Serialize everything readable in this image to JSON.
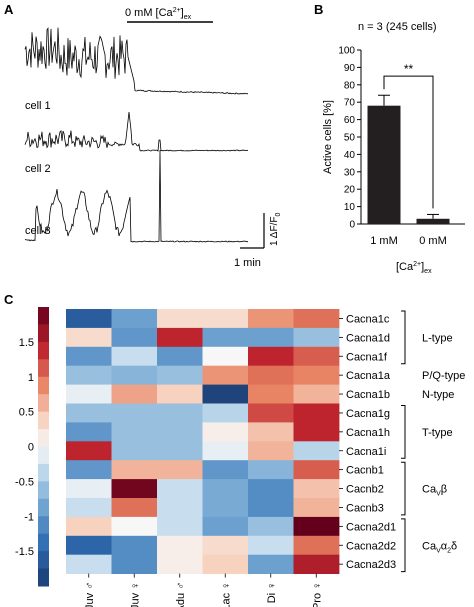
{
  "panel_a": {
    "letter": "A",
    "stim_label": "0 mM [Ca",
    "stim_sup": "2+",
    "stim_close": "]",
    "stim_sub": "ex",
    "cells": [
      "cell 1",
      "cell 2",
      "cell 3"
    ],
    "scale_y": "1 ΔF/F",
    "scale_y_sub": "0",
    "scale_x": "1 min"
  },
  "panel_b": {
    "letter": "B",
    "header": "n = 3 (245 cells)",
    "significance": "**",
    "xaxis_label": "[Ca",
    "xaxis_sup": "2+",
    "xaxis_close": "]",
    "xaxis_sub": "ex"
  },
  "panel_c": {
    "letter": "C",
    "colorbar_ticks": [
      "1.5",
      "1",
      "0.5",
      "0",
      "-0.5",
      "-1",
      "-1.5"
    ],
    "colorbar_values": [
      1.5,
      1,
      0.5,
      0,
      -0.5,
      -1,
      -1.5
    ],
    "genes": [
      "Cacna1c",
      "Cacna1d",
      "Cacna1f",
      "Cacna1a",
      "Cacna1b",
      "Cacna1g",
      "Cacna1h",
      "Cacna1i",
      "Cacnb1",
      "Cacnb2",
      "Cacnb3",
      "Cacna2d1",
      "Cacna2d2",
      "Cacna2d3"
    ],
    "groups": [
      {
        "label": "L-type",
        "rows": [
          0,
          2
        ]
      },
      {
        "label": "P/Q-type",
        "rows": [
          3,
          3
        ]
      },
      {
        "label": "N-type",
        "rows": [
          4,
          4
        ]
      },
      {
        "label": "T-type",
        "rows": [
          5,
          7
        ]
      },
      {
        "label": "Ca",
        "sub": "V",
        "tail": "β",
        "rows": [
          8,
          10
        ]
      },
      {
        "label": "Ca",
        "sub": "V",
        "tail": "α",
        "sub2": "2",
        "tail2": "δ",
        "rows": [
          11,
          13
        ]
      }
    ],
    "columns": [
      "Juv ♂",
      "Juv ♀",
      "Adu ♂",
      "Lac ♀",
      "Di ♀",
      "Pro ♀"
    ]
  },
  "chart_data": [
    {
      "type": "bar",
      "panel": "B",
      "categories": [
        "1 mM",
        "0 mM"
      ],
      "values": [
        68,
        3
      ],
      "errors": [
        6,
        2.5
      ],
      "ylabel": "Active cells [%]",
      "ylim": [
        0,
        100
      ],
      "yticks": [
        0,
        10,
        20,
        30,
        40,
        50,
        60,
        70,
        80,
        90,
        100
      ],
      "bar_color": "#231f20"
    },
    {
      "type": "heatmap",
      "panel": "C",
      "rows": [
        "Cacna1c",
        "Cacna1d",
        "Cacna1f",
        "Cacna1a",
        "Cacna1b",
        "Cacna1g",
        "Cacna1h",
        "Cacna1i",
        "Cacnb1",
        "Cacnb2",
        "Cacnb3",
        "Cacna2d1",
        "Cacna2d2",
        "Cacna2d3"
      ],
      "columns": [
        "Juv ♂",
        "Juv ♀",
        "Adu ♂",
        "Lac ♀",
        "Di ♀",
        "Pro ♀"
      ],
      "values": [
        [
          -1.6,
          -0.9,
          0.3,
          0.3,
          0.8,
          1.0
        ],
        [
          0.3,
          -1.0,
          1.4,
          -0.9,
          -0.9,
          -0.6
        ],
        [
          -1.0,
          -0.3,
          -1.0,
          0.0,
          1.4,
          1.1
        ],
        [
          -0.6,
          -0.7,
          -0.6,
          0.8,
          1.0,
          0.9
        ],
        [
          -0.1,
          0.7,
          0.4,
          -1.9,
          0.9,
          0.6
        ],
        [
          -0.6,
          -0.6,
          -0.6,
          -0.4,
          1.2,
          1.4
        ],
        [
          -1.0,
          -0.6,
          -0.6,
          0.1,
          0.5,
          1.4
        ],
        [
          1.4,
          -0.6,
          -0.6,
          -0.1,
          0.6,
          -0.4
        ],
        [
          -1.0,
          0.6,
          0.6,
          -1.0,
          -0.7,
          1.1
        ],
        [
          -0.1,
          1.9,
          -0.3,
          -0.8,
          -1.1,
          0.5
        ],
        [
          -0.3,
          1.0,
          -0.3,
          -0.8,
          -1.1,
          0.6
        ],
        [
          0.4,
          0.0,
          -0.3,
          -0.9,
          -0.6,
          2.0
        ],
        [
          -1.5,
          -1.1,
          0.1,
          0.3,
          -0.3,
          1.0
        ],
        [
          -0.3,
          -1.1,
          0.1,
          0.4,
          -0.9,
          1.5
        ]
      ],
      "colorbar_range": [
        -2,
        2
      ]
    }
  ]
}
